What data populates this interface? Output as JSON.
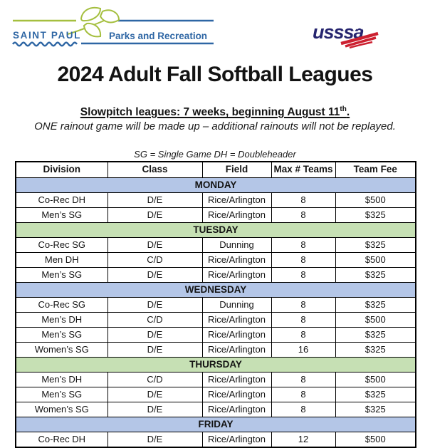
{
  "header": {
    "saint_paul": "SAINT PAUL",
    "parks_rec": "Parks and Recreation",
    "usssa": "usssa"
  },
  "title": "2024 Adult Fall Softball Leagues",
  "subtitle": {
    "text": "Slowpitch leagues: 7 weeks, beginning August 11",
    "ordinal": "th",
    "after": "."
  },
  "rainout_note": "ONE rainout game will be made up – additional rainouts will not be replayed.",
  "legend": "SG = Single Game DH = Doubleheader",
  "table": {
    "columns": [
      "Division",
      "Class",
      "Field",
      "Max # Teams",
      "Team Fee"
    ],
    "sections": [
      {
        "day": "MONDAY",
        "color": "blue",
        "rows": [
          [
            "Co-Rec DH",
            "D/E",
            "Rice/Arlington",
            "8",
            "$500"
          ],
          [
            "Men’s SG",
            "D/E",
            "Rice/Arlington",
            "8",
            "$325"
          ]
        ]
      },
      {
        "day": "TUESDAY",
        "color": "green",
        "rows": [
          [
            "Co-Rec SG",
            "D/E",
            "Dunning",
            "8",
            "$325"
          ],
          [
            "Men DH",
            "C/D",
            "Rice/Arlington",
            "8",
            "$500"
          ],
          [
            "Men’s SG",
            "D/E",
            "Rice/Arlington",
            "8",
            "$325"
          ]
        ]
      },
      {
        "day": "WEDNESDAY",
        "color": "blue",
        "rows": [
          [
            "Co-Rec SG",
            "D/E",
            "Dunning",
            "8",
            "$325"
          ],
          [
            "Men’s DH",
            "C/D",
            "Rice/Arlington",
            "8",
            "$500"
          ],
          [
            "Men’s SG",
            "D/E",
            "Rice/Arlington",
            "8",
            "$325"
          ],
          [
            "Women’s SG",
            "D/E",
            "Rice/Arlington",
            "16",
            "$325"
          ]
        ]
      },
      {
        "day": "THURSDAY",
        "color": "green",
        "rows": [
          [
            "Men’s DH",
            "C/D",
            "Rice/Arlington",
            "8",
            "$500"
          ],
          [
            "Men’s SG",
            "D/E",
            "Rice/Arlington",
            "8",
            "$325"
          ],
          [
            "Women’s SG",
            "D/E",
            "Rice/Arlington",
            "8",
            "$325"
          ]
        ]
      },
      {
        "day": "FRIDAY",
        "color": "blue",
        "rows": [
          [
            "Co-Rec DH",
            "D/E",
            "Rice/Arlington",
            "12",
            "$500"
          ]
        ]
      }
    ]
  },
  "colors": {
    "brand_blue": "#2e66a4",
    "brand_green": "#a5bf3f",
    "usssa_navy": "#26256f",
    "usssa_red": "#cc2030",
    "day_band_blue": "#b4c6e7",
    "day_band_green": "#c6e0b4",
    "table_border": "#000000"
  }
}
